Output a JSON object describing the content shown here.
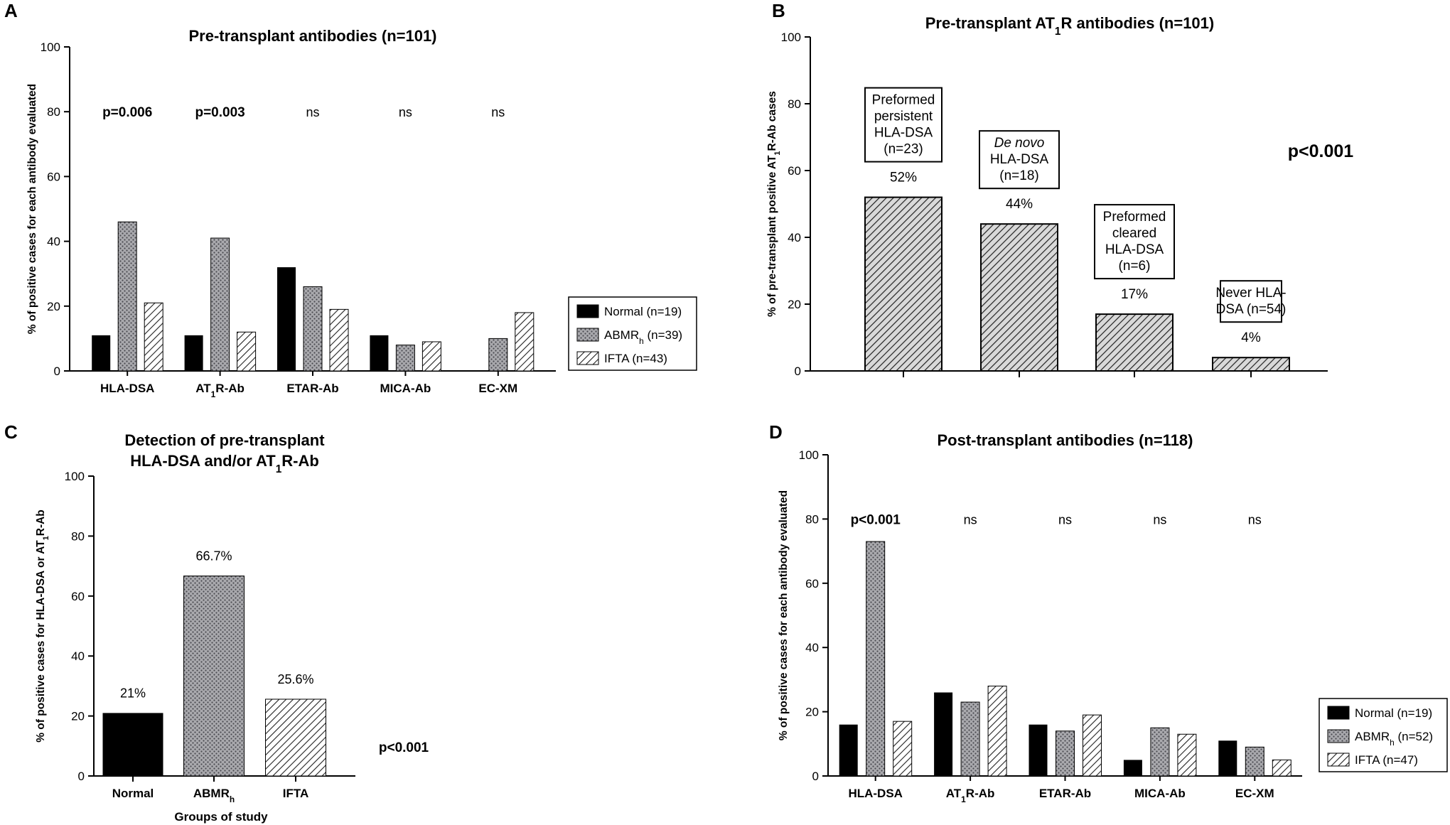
{
  "chart_data": [
    {
      "panel": "A",
      "type": "bar",
      "title": "Pre-transplant antibodies (n=101)",
      "ylabel": "% of positive cases for each antibody evaluated",
      "ylim": [
        0,
        100
      ],
      "yticks": [
        0,
        20,
        40,
        60,
        80,
        100
      ],
      "categories": [
        {
          "main": "HLA-DSA",
          "sub": "",
          "rest": ""
        },
        {
          "main": "AT",
          "sub": "1",
          "rest": "R-Ab"
        },
        {
          "main": "ETAR-Ab",
          "sub": "",
          "rest": ""
        },
        {
          "main": "MICA-Ab",
          "sub": "",
          "rest": ""
        },
        {
          "main": "EC-XM",
          "sub": "",
          "rest": ""
        }
      ],
      "series": [
        {
          "name": "Normal",
          "legend": {
            "main": "Normal (n=19)",
            "sub": "",
            "rest": ""
          },
          "values": [
            11,
            11,
            32,
            11,
            0
          ]
        },
        {
          "name": "ABMRh",
          "legend": {
            "main": "ABMR",
            "sub": "h",
            "rest": " (n=39)"
          },
          "values": [
            46,
            41,
            26,
            8,
            10
          ]
        },
        {
          "name": "IFTA",
          "legend": {
            "main": "IFTA (n=43)",
            "sub": "",
            "rest": ""
          },
          "values": [
            21,
            12,
            19,
            9,
            18
          ]
        }
      ],
      "pvalues": [
        {
          "text": "p=0.006",
          "bold": true
        },
        {
          "text": "p=0.003",
          "bold": true
        },
        {
          "text": "ns",
          "bold": false
        },
        {
          "text": "ns",
          "bold": false
        },
        {
          "text": "ns",
          "bold": false
        }
      ]
    },
    {
      "panel": "B",
      "type": "bar",
      "title": {
        "main": "Pre-transplant AT",
        "sub": "1",
        "rest": "R antibodies (n=101)"
      },
      "ylabel": {
        "main": "% of pre-transplant positive AT",
        "sub": "1",
        "rest": "R-Ab cases"
      },
      "ylim": [
        0,
        100
      ],
      "yticks": [
        0,
        20,
        40,
        60,
        80,
        100
      ],
      "bars": [
        {
          "value": 52,
          "label": "52%",
          "box": [
            {
              "t": "Preformed",
              "i": false
            },
            {
              "t": "persistent",
              "i": false
            },
            {
              "t": "HLA-DSA",
              "i": false
            },
            {
              "t": "(n=23)",
              "i": false
            }
          ]
        },
        {
          "value": 44,
          "label": "44%",
          "box": [
            {
              "t": "De novo",
              "i": true
            },
            {
              "t": "HLA-DSA",
              "i": false
            },
            {
              "t": "(n=18)",
              "i": false
            }
          ]
        },
        {
          "value": 17,
          "label": "17%",
          "box": [
            {
              "t": "Preformed",
              "i": false
            },
            {
              "t": "cleared",
              "i": false
            },
            {
              "t": "HLA-DSA",
              "i": false
            },
            {
              "t": "(n=6)",
              "i": false
            }
          ]
        },
        {
          "value": 4,
          "label": "4%",
          "box": [
            {
              "t": "Never HLA-",
              "i": false
            },
            {
              "t": "DSA (n=54)",
              "i": false
            }
          ]
        }
      ],
      "pvalue": "p<0.001"
    },
    {
      "panel": "C",
      "type": "bar",
      "title": [
        "Detection of pre-transplant",
        {
          "main": "HLA-DSA and/or AT",
          "sub": "1",
          "rest": "R-Ab"
        }
      ],
      "ylabel": {
        "main": "% of positive cases for HLA-DSA or AT",
        "sub": "1",
        "rest": "R-Ab"
      },
      "xlabel": "Groups of study",
      "ylim": [
        0,
        100
      ],
      "yticks": [
        0,
        20,
        40,
        60,
        80,
        100
      ],
      "categories": [
        {
          "main": "Normal",
          "sub": "",
          "rest": ""
        },
        {
          "main": "ABMR",
          "sub": "h",
          "rest": ""
        },
        {
          "main": "IFTA",
          "sub": "",
          "rest": ""
        }
      ],
      "values": [
        21,
        66.7,
        25.6
      ],
      "labels": [
        "21%",
        "66.7%",
        "25.6%"
      ],
      "pvalue": "p<0.001"
    },
    {
      "panel": "D",
      "type": "bar",
      "title": "Post-transplant antibodies (n=118)",
      "ylabel": "% of positive cases for each antibody evaluated",
      "ylim": [
        0,
        100
      ],
      "yticks": [
        0,
        20,
        40,
        60,
        80,
        100
      ],
      "categories": [
        {
          "main": "HLA-DSA",
          "sub": "",
          "rest": ""
        },
        {
          "main": "AT",
          "sub": "1",
          "rest": "R-Ab"
        },
        {
          "main": "ETAR-Ab",
          "sub": "",
          "rest": ""
        },
        {
          "main": "MICA-Ab",
          "sub": "",
          "rest": ""
        },
        {
          "main": "EC-XM",
          "sub": "",
          "rest": ""
        }
      ],
      "series": [
        {
          "name": "Normal",
          "legend": {
            "main": "Normal (n=19)",
            "sub": "",
            "rest": ""
          },
          "values": [
            16,
            26,
            16,
            5,
            11
          ]
        },
        {
          "name": "ABMRh",
          "legend": {
            "main": "ABMR",
            "sub": "h",
            "rest": " (n=52)"
          },
          "values": [
            73,
            23,
            14,
            15,
            9
          ]
        },
        {
          "name": "IFTA",
          "legend": {
            "main": "IFTA (n=47)",
            "sub": "",
            "rest": ""
          },
          "values": [
            17,
            28,
            19,
            13,
            5
          ]
        }
      ],
      "pvalues": [
        {
          "text": "p<0.001",
          "bold": true
        },
        {
          "text": "ns",
          "bold": false
        },
        {
          "text": "ns",
          "bold": false
        },
        {
          "text": "ns",
          "bold": false
        },
        {
          "text": "ns",
          "bold": false
        }
      ]
    }
  ],
  "colors": {
    "normal": "#000000",
    "abmr_fill": "#a9a9ad",
    "abmr_dot": "#4a4a50",
    "ifta_fill": "#ffffff",
    "ifta_hatch": "#222222",
    "axis": "#000000"
  }
}
